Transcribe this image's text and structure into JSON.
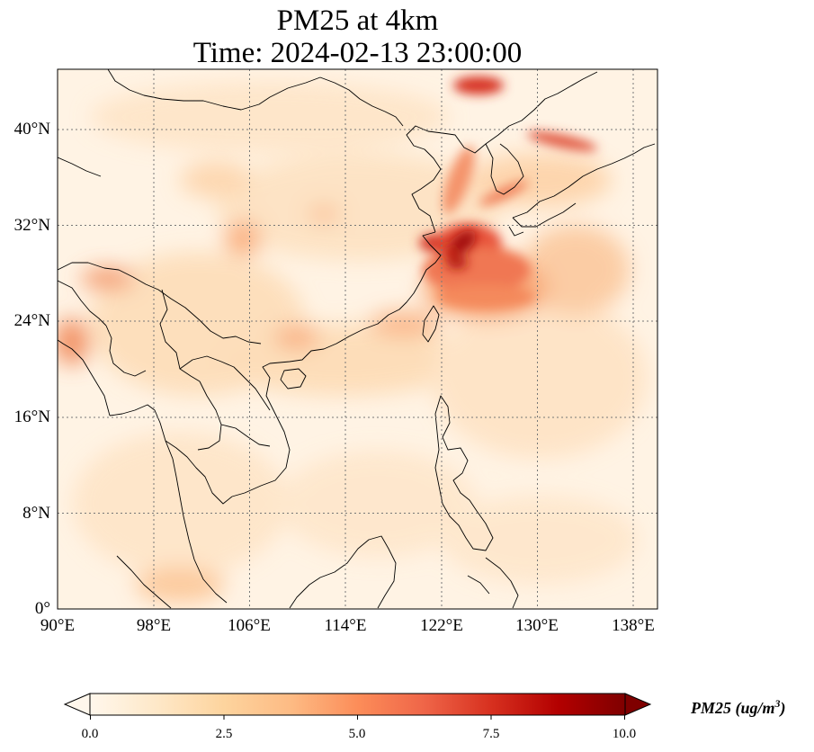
{
  "title": {
    "line1": "PM25 at 4km",
    "line2": "Time: 2024-02-13 23:00:00"
  },
  "map": {
    "projection": "PlateCarree",
    "lon_range": [
      90,
      140
    ],
    "lat_range": [
      0,
      45
    ],
    "x_ticks": [
      "90°E",
      "98°E",
      "106°E",
      "114°E",
      "122°E",
      "130°E",
      "138°E"
    ],
    "y_ticks": [
      "0°",
      "8°N",
      "16°N",
      "24°N",
      "32°N",
      "40°N"
    ],
    "gridlines": true,
    "colormap": "OrRd"
  },
  "colorbar": {
    "ticks": [
      "0.0",
      "2.5",
      "5.0",
      "7.5",
      "10.0"
    ],
    "range": [
      0,
      10
    ],
    "extend": "both",
    "label_main": "PM25 (ug/m",
    "label_sup": "3",
    "label_end": ")",
    "colors": [
      "#fff7ec",
      "#fee8c8",
      "#fdd49e",
      "#fdbb84",
      "#fc8d59",
      "#ef6548",
      "#d7301f",
      "#b30000",
      "#7f0000"
    ]
  }
}
